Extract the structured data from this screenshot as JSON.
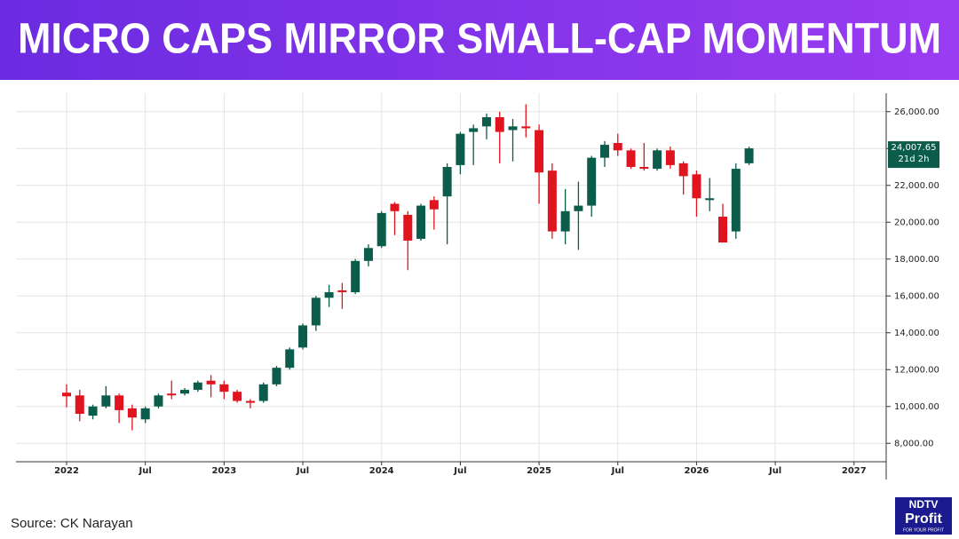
{
  "chart_data": {
    "type": "candlestick",
    "title": "MICRO CAPS MIRROR SMALL-CAP MOMENTUM",
    "source": "Source: CK Narayan",
    "logo": {
      "top": "NDTV",
      "main": "Profit",
      "tagline": "FOR YOUR PROFIT"
    },
    "x": [
      "2022-01",
      "2022-02",
      "2022-03",
      "2022-04",
      "2022-05",
      "2022-06",
      "2022-07",
      "2022-08",
      "2022-09",
      "2022-10",
      "2022-11",
      "2022-12",
      "2023-01",
      "2023-02",
      "2023-03",
      "2023-04",
      "2023-05",
      "2023-06",
      "2023-07",
      "2023-08",
      "2023-09",
      "2023-10",
      "2023-11",
      "2023-12",
      "2024-01",
      "2024-02",
      "2024-03",
      "2024-04",
      "2024-05",
      "2024-06",
      "2024-07",
      "2024-08",
      "2024-09",
      "2024-10",
      "2024-11",
      "2024-12",
      "2025-01",
      "2025-02",
      "2025-03",
      "2025-04",
      "2025-05",
      "2025-06",
      "2025-07",
      "2025-08",
      "2025-09",
      "2025-10",
      "2025-11",
      "2025-12",
      "2026-01",
      "2026-02",
      "2026-03",
      "2026-04",
      "2026-05"
    ],
    "open": [
      10750,
      10600,
      9500,
      10000,
      10600,
      9900,
      9300,
      10000,
      10700,
      10700,
      10900,
      11400,
      11200,
      10800,
      10300,
      10300,
      11200,
      12100,
      13200,
      14400,
      15900,
      16300,
      16200,
      17900,
      18700,
      21000,
      20400,
      19100,
      21200,
      21400,
      23100,
      24900,
      25200,
      25700,
      25000,
      25200,
      25000,
      22800,
      19500,
      20600,
      20900,
      23500,
      24300,
      23900,
      23000,
      22900,
      23900,
      23200,
      22600,
      21200,
      20300,
      19500,
      23200
    ],
    "high": [
      11200,
      10900,
      10100,
      11100,
      10700,
      10100,
      10000,
      10700,
      11400,
      11000,
      11400,
      11700,
      11400,
      10900,
      10400,
      11300,
      12200,
      13200,
      14500,
      16000,
      16600,
      16700,
      18000,
      18800,
      20600,
      21100,
      20600,
      21000,
      21400,
      23200,
      24900,
      25300,
      25900,
      26000,
      25600,
      26400,
      25300,
      23200,
      21800,
      22200,
      23600,
      24400,
      24800,
      24000,
      24300,
      24000,
      24100,
      23300,
      22800,
      22400,
      21000,
      23200,
      24100
    ],
    "low": [
      9950,
      9200,
      9300,
      9900,
      9100,
      8700,
      9100,
      9900,
      10400,
      10600,
      10800,
      10500,
      10400,
      10200,
      9900,
      10200,
      11100,
      12000,
      13100,
      14100,
      15400,
      15300,
      16100,
      17600,
      18600,
      19300,
      17400,
      19000,
      19600,
      18800,
      22600,
      23100,
      24500,
      23200,
      23300,
      24600,
      21000,
      19100,
      18800,
      18500,
      20300,
      23000,
      23600,
      22900,
      22800,
      22800,
      22900,
      21500,
      20300,
      20600,
      18900,
      19100,
      23100
    ],
    "close": [
      10550,
      9600,
      10000,
      10600,
      9800,
      9400,
      9900,
      10600,
      10600,
      10900,
      11300,
      11200,
      10800,
      10300,
      10200,
      11200,
      12100,
      13100,
      14400,
      15900,
      16200,
      16200,
      17900,
      18600,
      20500,
      20600,
      19000,
      20900,
      20700,
      23000,
      24800,
      25100,
      25700,
      24900,
      25200,
      25100,
      22700,
      19500,
      20600,
      20900,
      23500,
      24200,
      23900,
      23000,
      22900,
      23900,
      23100,
      22500,
      21300,
      21300,
      18900,
      22900,
      24007.65
    ],
    "up_color": "#0b5c4a",
    "down_color": "#e0141e",
    "last_price": {
      "value": 24007.65,
      "label": "24,007.65"
    },
    "last_note": "21d 2h",
    "ylim": [
      7000,
      27000
    ],
    "yticks": [
      {
        "value": 8000,
        "label": "8,000.00"
      },
      {
        "value": 10000,
        "label": "10,000.00"
      },
      {
        "value": 12000,
        "label": "12,000.00"
      },
      {
        "value": 14000,
        "label": "14,000.00"
      },
      {
        "value": 16000,
        "label": "16,000.00"
      },
      {
        "value": 18000,
        "label": "18,000.00"
      },
      {
        "value": 20000,
        "label": "20,000.00"
      },
      {
        "value": 22000,
        "label": "22,000.00"
      },
      {
        "value": 24000,
        "label": "24,000.00"
      },
      {
        "value": 26000,
        "label": "26,000.00"
      }
    ],
    "xticks": [
      {
        "value": "2022-01",
        "label": "2022"
      },
      {
        "value": "2022-07",
        "label": "Jul"
      },
      {
        "value": "2023-01",
        "label": "2023"
      },
      {
        "value": "2023-07",
        "label": "Jul"
      },
      {
        "value": "2024-01",
        "label": "2024"
      },
      {
        "value": "2024-07",
        "label": "Jul"
      },
      {
        "value": "2025-01",
        "label": "2025"
      },
      {
        "value": "2025-07",
        "label": "Jul"
      },
      {
        "value": "2026-01",
        "label": "2026"
      },
      {
        "value": "2026-07",
        "label": "Jul"
      },
      {
        "value": "2027-01",
        "label": "2027"
      }
    ],
    "grid": true
  }
}
